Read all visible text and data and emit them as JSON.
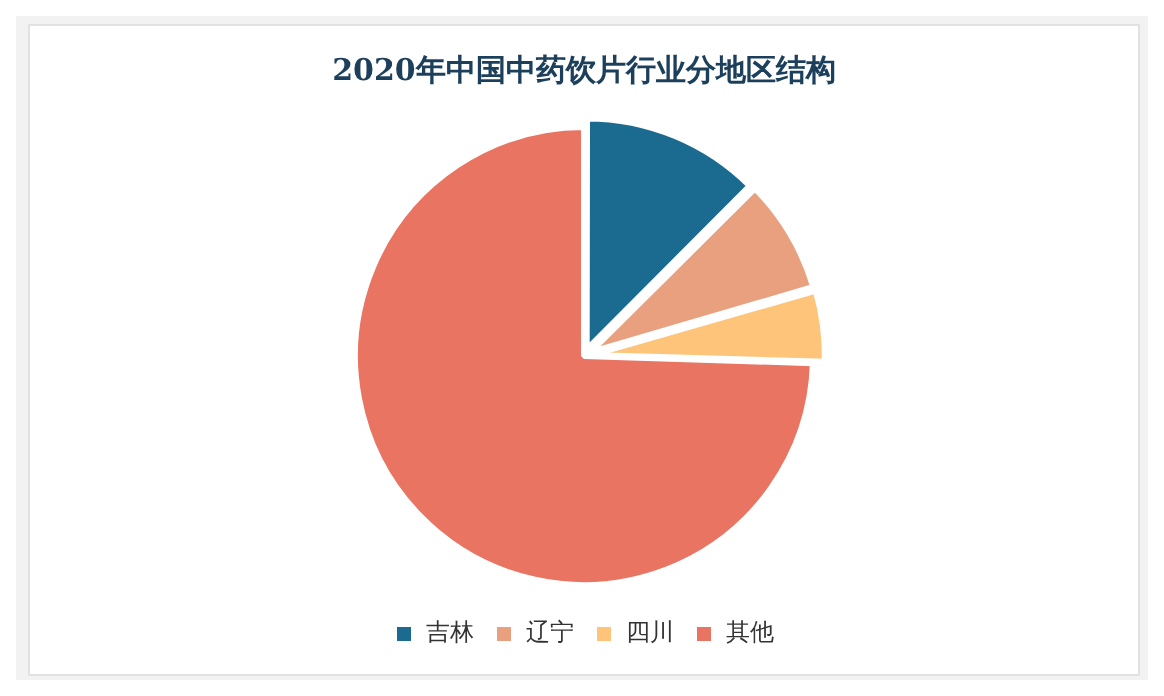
{
  "chart_data": {
    "type": "pie",
    "title": "2020年中国中药饮片行业分地区结构",
    "categories": [
      "吉林",
      "辽宁",
      "四川",
      "其他"
    ],
    "values": [
      12.5,
      8,
      5,
      74.5
    ],
    "colors": [
      "#1b6a8f",
      "#e8a07e",
      "#fdc47a",
      "#e87461"
    ],
    "legend": "bottom"
  }
}
